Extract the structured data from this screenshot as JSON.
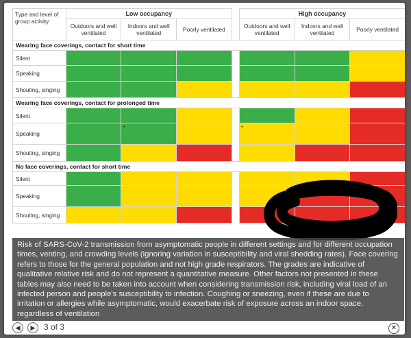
{
  "table": {
    "corner_label": "Type and level of group activity",
    "groups": [
      "Low occupancy",
      "High occupancy"
    ],
    "sub_headers": [
      "Outdoors and well ventilated",
      "Indoors and well ventilated",
      "Poorly ventilated"
    ],
    "colors": {
      "green": "#3aae49",
      "yellow": "#ffdc00",
      "red": "#e52b26"
    },
    "sections": [
      {
        "title": "Wearing face coverings, contact for short time",
        "rows": [
          {
            "label": "Silent",
            "low": [
              "g",
              "g",
              "g"
            ],
            "high": [
              "g",
              "g",
              "y"
            ],
            "marks": []
          },
          {
            "label": "Speaking",
            "low": [
              "g",
              "g",
              "g"
            ],
            "high": [
              "g",
              "g",
              "y"
            ],
            "marks": []
          },
          {
            "label": "Shouting, singing",
            "low": [
              "g",
              "g",
              "y"
            ],
            "high": [
              "y",
              "y",
              "r"
            ],
            "marks": []
          }
        ]
      },
      {
        "title": "Wearing face coverings, contact for prolonged time",
        "rows": [
          {
            "label": "Silent",
            "low": [
              "g",
              "g",
              "y"
            ],
            "high": [
              "g",
              "y",
              "r"
            ],
            "marks": []
          },
          {
            "label": "Speaking",
            "low": [
              "g",
              "g",
              "y"
            ],
            "high": [
              "y",
              "y",
              "r"
            ],
            "marks": [
              [
                0,
                1
              ],
              [
                1,
                0
              ]
            ]
          },
          {
            "label": "Shouting, singing",
            "low": [
              "g",
              "y",
              "r"
            ],
            "high": [
              "y",
              "r",
              "r"
            ],
            "marks": []
          }
        ]
      },
      {
        "title": "No face coverings, contact for short time",
        "rows": [
          {
            "label": "Silent",
            "low": [
              "g",
              "y",
              "y"
            ],
            "high": [
              "y",
              "y",
              "r"
            ],
            "marks": []
          },
          {
            "label": "Speaking",
            "low": [
              "g",
              "y",
              "y"
            ],
            "high": [
              "y",
              "r",
              "r"
            ],
            "marks": []
          },
          {
            "label": "Shouting, singing",
            "low": [
              "y",
              "y",
              "r"
            ],
            "high": [
              "r",
              "r",
              "r"
            ],
            "marks": []
          }
        ]
      }
    ],
    "asterisk": "*"
  },
  "caption": "Risk of SARS-CoV-2 transmission from asymptomatic people in different settings and for different occupation times, venting, and crowding levels (ignoring variation in susceptibility and viral shedding rates). Face covering refers to those for the general population and not high grade respirators. The grades are indicative of qualitative relative risk and do not represent a quantitative measure. Other factors not presented in these tables may also need to be taken into account when considering transmission risk, including viral load of an infected person and people's susceptibility to infection. Coughing or sneezing, even if these are due to irritation or allergies while asymptomatic, would exacerbate risk of exposure across an indoor space, regardless of ventilation",
  "footer": {
    "prev_icon": "arrow-left-icon",
    "next_icon": "arrow-right-icon",
    "counter": "3 of 3",
    "close_icon": "close-icon"
  }
}
